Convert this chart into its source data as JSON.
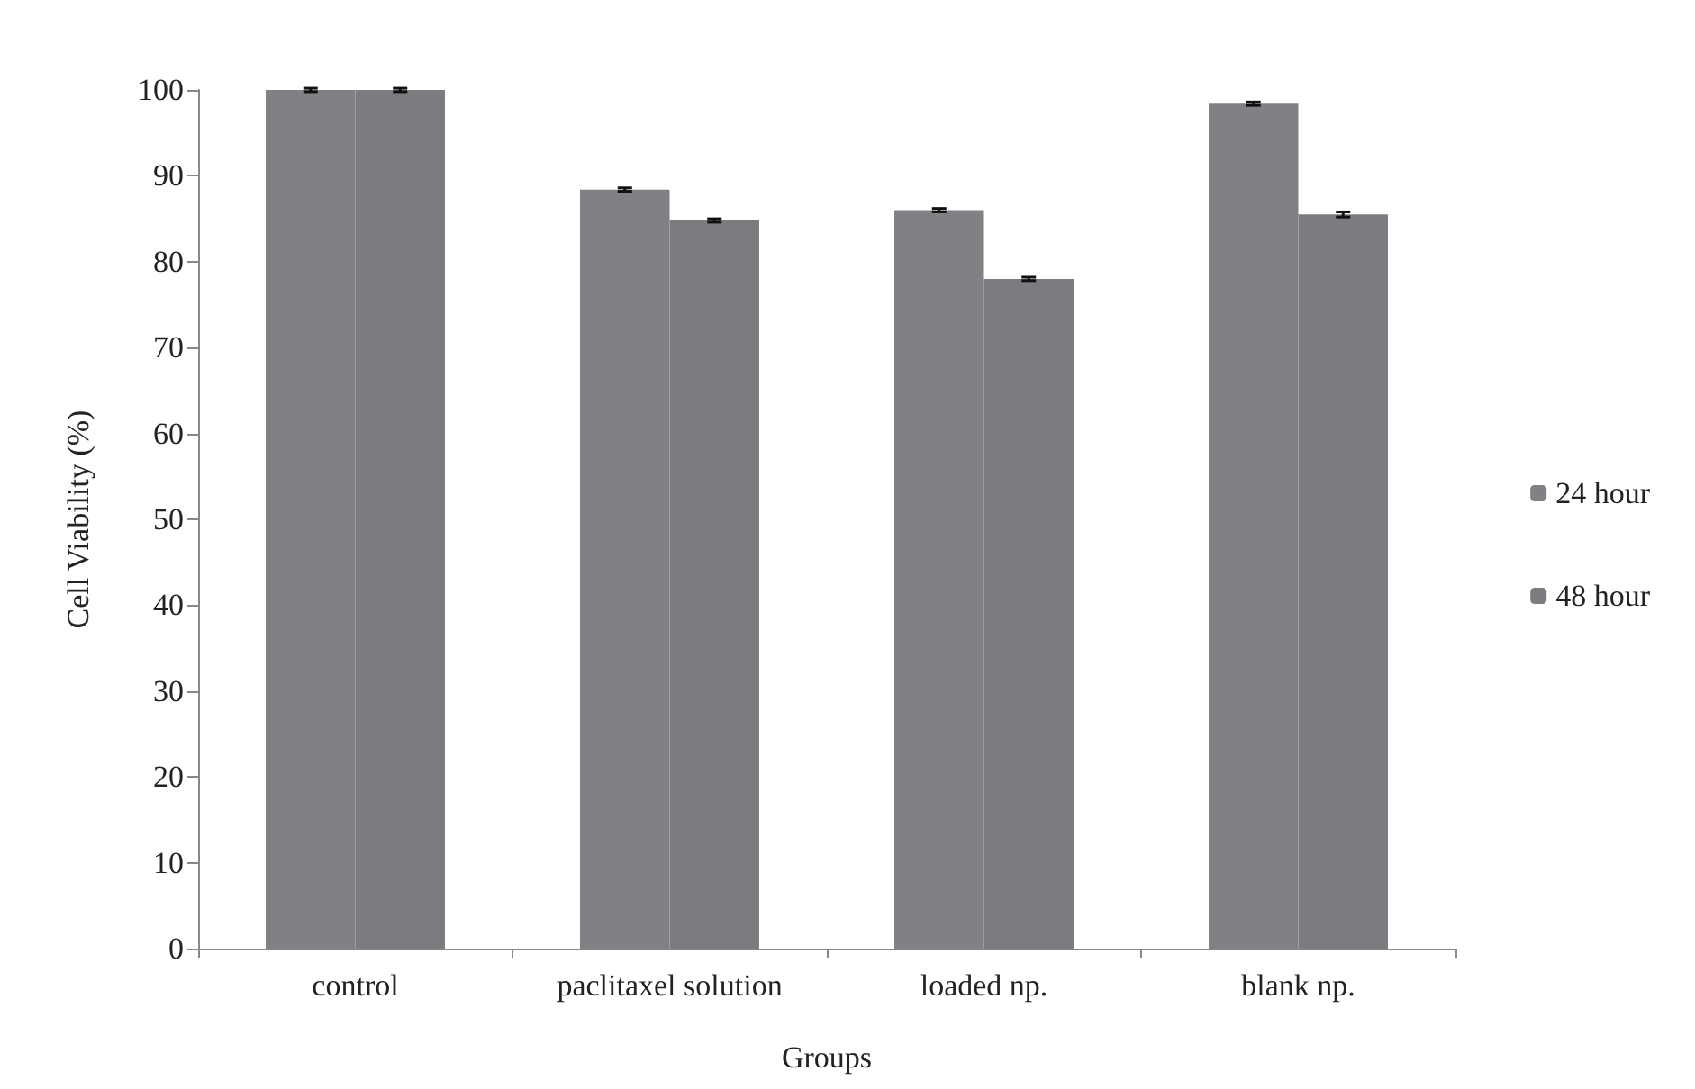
{
  "chart_data": {
    "type": "bar",
    "xlabel": "Groups",
    "ylabel": "Cell Viability (%)",
    "categories": [
      "control",
      "paclitaxel solution",
      "loaded np.",
      "blank np."
    ],
    "series": [
      {
        "name": "24 hour",
        "color": "#808185",
        "values": [
          100,
          88.4,
          86,
          98.4
        ],
        "errors": [
          0.2,
          0.2,
          0.2,
          0.2
        ]
      },
      {
        "name": "48 hour",
        "color": "#7b7c80",
        "values": [
          100,
          84.8,
          78,
          85.5
        ],
        "errors": [
          0.2,
          0.2,
          0.2,
          0.3
        ]
      }
    ],
    "ylim": [
      0,
      100
    ],
    "yticks": [
      0,
      10,
      20,
      30,
      40,
      50,
      60,
      70,
      80,
      90,
      100
    ],
    "grid": false,
    "legend": "right"
  }
}
